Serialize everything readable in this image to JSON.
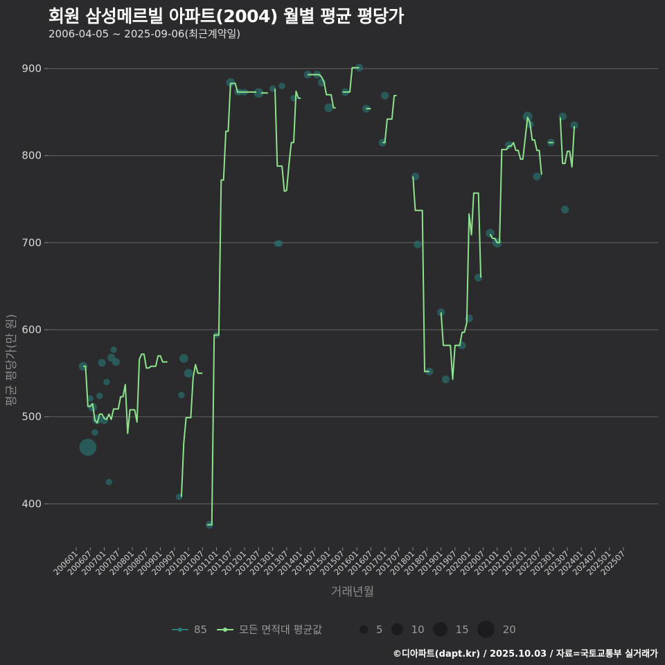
{
  "header": {
    "title": "회원 삼성메르빌 아파트(2004) 월별 평균 평당가",
    "subtitle": "2006-04-05 ~ 2025-09-06(최근계약일)"
  },
  "axes": {
    "y_title": "평균 평당가(만 원)",
    "x_title": "거래년월"
  },
  "legend": {
    "series": [
      {
        "label": "85",
        "color": "#2a7a78"
      },
      {
        "label": "모든 면적대 평균값",
        "color": "#8fe38c"
      }
    ],
    "sizes": [
      {
        "label": "5",
        "d": 12
      },
      {
        "label": "10",
        "d": 17
      },
      {
        "label": "15",
        "d": 21
      },
      {
        "label": "20",
        "d": 25
      }
    ]
  },
  "footer": "©디아파트(dapt.kr) / 2025.10.03 / 자료=국토교통부 실거래가",
  "colors": {
    "background": "#2b2b2d",
    "grid": "#5a5a5a",
    "line": "#8fe38c",
    "points": "#2a6e6c"
  },
  "chart_data": {
    "type": "line",
    "title": "회원 삼성메르빌 아파트(2004) 월별 평균 평당가",
    "subtitle": "2006-04-05 ~ 2025-09-06(최근계약일)",
    "xlabel": "거래년월",
    "ylabel": "평균 평당가(만 원)",
    "ylim": [
      350,
      925
    ],
    "yticks": [
      400,
      500,
      600,
      700,
      800,
      900
    ],
    "grid": true,
    "legend_position": "bottom",
    "categories": [
      "200601",
      "200607",
      "200701",
      "200707",
      "200801",
      "200807",
      "200901",
      "200907",
      "201001",
      "201007",
      "201101",
      "201107",
      "201201",
      "201207",
      "201301",
      "201307",
      "201401",
      "201407",
      "201501",
      "201507",
      "201601",
      "201607",
      "201701",
      "201707",
      "201801",
      "201807",
      "201901",
      "201907",
      "202001",
      "202007",
      "202101",
      "202107",
      "202201",
      "202207",
      "202301",
      "202307",
      "202401",
      "202407",
      "202501",
      "202507"
    ],
    "series": [
      {
        "name": "모든 면적대 평균값",
        "segments": [
          [
            [
              "200604",
              558
            ],
            [
              "200605",
              558
            ],
            [
              "200606",
              512
            ],
            [
              "200607",
              512
            ],
            [
              "200608",
              515
            ],
            [
              "200609",
              496
            ],
            [
              "200610",
              493
            ],
            [
              "200611",
              503
            ],
            [
              "200612",
              503
            ],
            [
              "200701",
              498
            ],
            [
              "200702",
              497
            ],
            [
              "200703",
              503
            ],
            [
              "200704",
              497
            ],
            [
              "200705",
              509
            ],
            [
              "200706",
              509
            ],
            [
              "200707",
              509
            ],
            [
              "200708",
              523
            ],
            [
              "200709",
              523
            ],
            [
              "200710",
              537
            ],
            [
              "200711",
              481
            ],
            [
              "200712",
              508
            ],
            [
              "200801",
              508
            ],
            [
              "200802",
              508
            ],
            [
              "200803",
              494
            ],
            [
              "200804",
              566
            ],
            [
              "200805",
              572
            ],
            [
              "200806",
              572
            ],
            [
              "200807",
              556
            ],
            [
              "200808",
              556
            ],
            [
              "200809",
              558
            ],
            [
              "200810",
              558
            ],
            [
              "200811",
              558
            ],
            [
              "200812",
              570
            ],
            [
              "200901",
              570
            ],
            [
              "200902",
              563
            ],
            [
              "200903",
              563
            ],
            [
              "200904",
              563
            ]
          ],
          [
            [
              "200910",
              408
            ],
            [
              "200911",
              470
            ],
            [
              "200912",
              499
            ],
            [
              "201001",
              499
            ],
            [
              "201002",
              499
            ],
            [
              "201003",
              545
            ],
            [
              "201004",
              560
            ],
            [
              "201005",
              550
            ],
            [
              "201006",
              550
            ],
            [
              "201007",
              550
            ]
          ],
          [
            [
              "201009",
              376
            ],
            [
              "201010",
              376
            ],
            [
              "201011",
              376
            ],
            [
              "201012",
              594
            ],
            [
              "201101",
              594
            ],
            [
              "201102",
              594
            ],
            [
              "201103",
              772
            ],
            [
              "201104",
              772
            ],
            [
              "201105",
              828
            ],
            [
              "201106",
              828
            ],
            [
              "201107",
              883
            ],
            [
              "201108",
              883
            ],
            [
              "201109",
              883
            ],
            [
              "201110",
              873
            ],
            [
              "201111",
              873
            ],
            [
              "201112",
              873
            ],
            [
              "201201",
              873
            ],
            [
              "201202",
              873
            ],
            [
              "201203",
              873
            ],
            [
              "201204",
              873
            ],
            [
              "201205",
              873
            ],
            [
              "201206",
              873
            ]
          ],
          [
            [
              "201208",
              872
            ],
            [
              "201209",
              872
            ],
            [
              "201210",
              872
            ],
            [
              "201211",
              872
            ]
          ],
          [
            [
              "201302",
              877
            ],
            [
              "201303",
              788
            ],
            [
              "201304",
              788
            ],
            [
              "201305",
              788
            ],
            [
              "201306",
              759
            ],
            [
              "201307",
              760
            ],
            [
              "201308",
              790
            ],
            [
              "201309",
              815
            ],
            [
              "201310",
              815
            ],
            [
              "201311",
              874
            ],
            [
              "201312",
              866
            ],
            [
              "201401",
              866
            ]
          ],
          [
            [
              "201404",
              893
            ],
            [
              "201405",
              893
            ],
            [
              "201406",
              893
            ],
            [
              "201407",
              893
            ],
            [
              "201408",
              893
            ],
            [
              "201409",
              893
            ],
            [
              "201410",
              890
            ],
            [
              "201411",
              884
            ],
            [
              "201412",
              870
            ],
            [
              "201501",
              870
            ],
            [
              "201502",
              870
            ],
            [
              "201503",
              855
            ],
            [
              "201504",
              855
            ]
          ],
          [
            [
              "201507",
              873
            ],
            [
              "201508",
              873
            ],
            [
              "201509",
              873
            ],
            [
              "201510",
              873
            ],
            [
              "201511",
              901
            ],
            [
              "201512",
              901
            ],
            [
              "201601",
              901
            ],
            [
              "201602",
              901
            ]
          ],
          [
            [
              "201605",
              854
            ],
            [
              "201606",
              854
            ],
            [
              "201607",
              854
            ]
          ],
          [
            [
              "201612",
              815
            ],
            [
              "201701",
              815
            ],
            [
              "201702",
              842
            ],
            [
              "201703",
              842
            ],
            [
              "201704",
              842
            ],
            [
              "201705",
              869
            ],
            [
              "201706",
              869
            ]
          ],
          [
            [
              "201801",
              776
            ],
            [
              "201802",
              737
            ],
            [
              "201803",
              737
            ],
            [
              "201804",
              737
            ],
            [
              "201805",
              737
            ],
            [
              "201806",
              552
            ],
            [
              "201807",
              552
            ],
            [
              "201808",
              552
            ]
          ],
          [
            [
              "201901",
              620
            ],
            [
              "201902",
              582
            ],
            [
              "201903",
              582
            ],
            [
              "201904",
              582
            ],
            [
              "201905",
              582
            ],
            [
              "201906",
              543
            ],
            [
              "201907",
              582
            ],
            [
              "201908",
              582
            ],
            [
              "201909",
              582
            ],
            [
              "201910",
              597
            ],
            [
              "201911",
              597
            ],
            [
              "201912",
              608
            ],
            [
              "202001",
              733
            ],
            [
              "202002",
              709
            ],
            [
              "202003",
              757
            ],
            [
              "202004",
              757
            ],
            [
              "202005",
              757
            ],
            [
              "202006",
              660
            ]
          ],
          [
            [
              "202010",
              710
            ],
            [
              "202011",
              705
            ],
            [
              "202012",
              705
            ],
            [
              "202101",
              700
            ],
            [
              "202102",
              700
            ],
            [
              "202103",
              807
            ],
            [
              "202104",
              807
            ],
            [
              "202105",
              807
            ],
            [
              "202106",
              811
            ],
            [
              "202107",
              811
            ],
            [
              "202108",
              815
            ],
            [
              "202109",
              806
            ],
            [
              "202110",
              806
            ],
            [
              "202111",
              796
            ],
            [
              "202112",
              796
            ],
            [
              "202201",
              820
            ],
            [
              "202202",
              844
            ],
            [
              "202203",
              838
            ],
            [
              "202204",
              818
            ],
            [
              "202205",
              818
            ],
            [
              "202206",
              806
            ],
            [
              "202207",
              806
            ],
            [
              "202208",
              778
            ]
          ],
          [
            [
              "202211",
              815
            ],
            [
              "202212",
              815
            ],
            [
              "202301",
              815
            ]
          ],
          [
            [
              "202304",
              844
            ],
            [
              "202305",
              791
            ],
            [
              "202306",
              791
            ],
            [
              "202307",
              805
            ],
            [
              "202308",
              805
            ],
            [
              "202309",
              787
            ],
            [
              "202310",
              834
            ]
          ]
        ]
      },
      {
        "name": "85",
        "points": [
          [
            "200604",
            558,
            3
          ],
          [
            "200606",
            465,
            20
          ],
          [
            "200607",
            521,
            1
          ],
          [
            "200608",
            511,
            3
          ],
          [
            "200609",
            482,
            1
          ],
          [
            "200610",
            497,
            4
          ],
          [
            "200611",
            524,
            1
          ],
          [
            "200612",
            562,
            2
          ],
          [
            "200701",
            496,
            2
          ],
          [
            "200702",
            540,
            1
          ],
          [
            "200703",
            425,
            1
          ],
          [
            "200704",
            568,
            2
          ],
          [
            "200705",
            577,
            1
          ],
          [
            "200706",
            563,
            2
          ],
          [
            "200909",
            408,
            1
          ],
          [
            "200910",
            525,
            1
          ],
          [
            "200911",
            567,
            3
          ],
          [
            "201001",
            550,
            3
          ],
          [
            "201010",
            376,
            2
          ],
          [
            "201101",
            594,
            1
          ],
          [
            "201107",
            884,
            3
          ],
          [
            "201110",
            873,
            1
          ],
          [
            "201111",
            873,
            1
          ],
          [
            "201201",
            873,
            1
          ],
          [
            "201207",
            872,
            4
          ],
          [
            "201301",
            877,
            1
          ],
          [
            "201303",
            699,
            1
          ],
          [
            "201304",
            699,
            1
          ],
          [
            "201305",
            880,
            1
          ],
          [
            "201310",
            866,
            1
          ],
          [
            "201404",
            893,
            2
          ],
          [
            "201408",
            893,
            2
          ],
          [
            "201410",
            884,
            2
          ],
          [
            "201501",
            855,
            3
          ],
          [
            "201508",
            873,
            2
          ],
          [
            "201602",
            901,
            2
          ],
          [
            "201605",
            854,
            2
          ],
          [
            "201612",
            815,
            2
          ],
          [
            "201701",
            869,
            2
          ],
          [
            "201802",
            776,
            2
          ],
          [
            "201803",
            698,
            2
          ],
          [
            "201808",
            552,
            2
          ],
          [
            "201901",
            620,
            2
          ],
          [
            "201903",
            543,
            2
          ],
          [
            "201910",
            582,
            2
          ],
          [
            "202001",
            613,
            2
          ],
          [
            "202005",
            660,
            2
          ],
          [
            "202010",
            711,
            3
          ],
          [
            "202101",
            700,
            4
          ],
          [
            "202106",
            812,
            2
          ],
          [
            "202202",
            845,
            4
          ],
          [
            "202203",
            836,
            2
          ],
          [
            "202206",
            776,
            2
          ],
          [
            "202212",
            815,
            2
          ],
          [
            "202305",
            845,
            2
          ],
          [
            "202306",
            738,
            2
          ],
          [
            "202310",
            835,
            2
          ]
        ]
      }
    ]
  }
}
